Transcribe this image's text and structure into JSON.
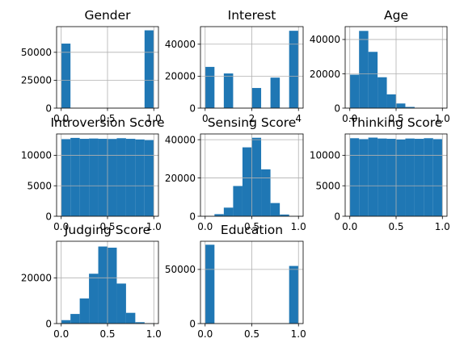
{
  "chart_data": [
    {
      "type": "bar",
      "title": "Gender",
      "xlim": [
        -0.05,
        1.05
      ],
      "ylim": [
        0,
        73000
      ],
      "xticks": [
        0.0,
        0.5,
        1.0
      ],
      "xtick_labels": [
        "0.0",
        "0.5",
        "1.0"
      ],
      "yticks": [
        0,
        25000,
        50000
      ],
      "ytick_labels": [
        "0",
        "25000",
        "50000"
      ],
      "bin_edges": [
        0.0,
        0.1,
        0.2,
        0.3,
        0.4,
        0.5,
        0.6,
        0.7,
        0.8,
        0.9,
        1.0
      ],
      "values": [
        57800,
        0,
        0,
        0,
        0,
        0,
        0,
        0,
        0,
        69700
      ],
      "grid": true
    },
    {
      "type": "bar",
      "title": "Interest",
      "xlim": [
        -0.2,
        4.2
      ],
      "ylim": [
        0,
        51000
      ],
      "xticks": [
        0,
        2,
        4
      ],
      "xtick_labels": [
        "0",
        "2",
        "4"
      ],
      "yticks": [
        0,
        20000,
        40000
      ],
      "ytick_labels": [
        "0",
        "20000",
        "40000"
      ],
      "bin_edges": [
        0.0,
        0.4,
        0.8,
        1.2,
        1.6,
        2.0,
        2.4,
        2.8,
        3.2,
        3.6,
        4.0
      ],
      "values": [
        25800,
        0,
        21700,
        0,
        0,
        12600,
        0,
        19100,
        0,
        48400
      ],
      "grid": true
    },
    {
      "type": "bar",
      "title": "Age",
      "xlim": [
        -0.05,
        1.05
      ],
      "ylim": [
        0,
        47500
      ],
      "xticks": [
        0.0,
        0.5,
        1.0
      ],
      "xtick_labels": [
        "0.0",
        "0.5",
        "1.0"
      ],
      "yticks": [
        0,
        20000,
        40000
      ],
      "ytick_labels": [
        "0",
        "20000",
        "40000"
      ],
      "bin_edges": [
        0.0,
        0.1,
        0.2,
        0.3,
        0.4,
        0.5,
        0.6,
        0.7,
        0.8,
        0.9,
        1.0
      ],
      "values": [
        19500,
        45000,
        32800,
        18000,
        8000,
        2700,
        700,
        150,
        50,
        20
      ],
      "grid": true
    },
    {
      "type": "bar",
      "title": "Introversion Score",
      "xlim": [
        -0.05,
        1.05
      ],
      "ylim": [
        0,
        13500
      ],
      "xticks": [
        0.0,
        0.5,
        1.0
      ],
      "xtick_labels": [
        "0.0",
        "0.5",
        "1.0"
      ],
      "yticks": [
        0,
        5000,
        10000
      ],
      "ytick_labels": [
        "0",
        "5000",
        "10000"
      ],
      "bin_edges": [
        0.0,
        0.1,
        0.2,
        0.3,
        0.4,
        0.5,
        0.6,
        0.7,
        0.8,
        0.9,
        1.0
      ],
      "values": [
        12650,
        12850,
        12700,
        12750,
        12700,
        12680,
        12800,
        12700,
        12600,
        12500
      ],
      "grid": true
    },
    {
      "type": "bar",
      "title": "Sensing Score",
      "xlim": [
        -0.05,
        1.05
      ],
      "ylim": [
        0,
        43000
      ],
      "xticks": [
        0.0,
        0.5,
        1.0
      ],
      "xtick_labels": [
        "0.0",
        "0.5",
        "1.0"
      ],
      "yticks": [
        0,
        20000,
        40000
      ],
      "ytick_labels": [
        "0",
        "20000",
        "40000"
      ],
      "bin_edges": [
        0.0,
        0.1,
        0.2,
        0.3,
        0.4,
        0.5,
        0.6,
        0.7,
        0.8,
        0.9,
        1.0
      ],
      "values": [
        100,
        1100,
        4500,
        15800,
        36000,
        41000,
        24500,
        6900,
        900,
        100
      ],
      "grid": true
    },
    {
      "type": "bar",
      "title": "Thinking Score",
      "xlim": [
        -0.05,
        1.05
      ],
      "ylim": [
        0,
        13500
      ],
      "xticks": [
        0.0,
        0.5,
        1.0
      ],
      "xtick_labels": [
        "0.0",
        "0.5",
        "1.0"
      ],
      "yticks": [
        0,
        5000,
        10000
      ],
      "ytick_labels": [
        "0",
        "5000",
        "10000"
      ],
      "bin_edges": [
        0.0,
        0.1,
        0.2,
        0.3,
        0.4,
        0.5,
        0.6,
        0.7,
        0.8,
        0.9,
        1.0
      ],
      "values": [
        12800,
        12650,
        12900,
        12750,
        12700,
        12600,
        12750,
        12700,
        12800,
        12650
      ],
      "grid": true
    },
    {
      "type": "bar",
      "title": "Judging Score",
      "xlim": [
        -0.05,
        1.05
      ],
      "ylim": [
        0,
        36000
      ],
      "xticks": [
        0.0,
        0.5,
        1.0
      ],
      "xtick_labels": [
        "0.0",
        "0.5",
        "1.0"
      ],
      "yticks": [
        0,
        20000
      ],
      "ytick_labels": [
        "0",
        "20000"
      ],
      "bin_edges": [
        0.0,
        0.1,
        0.2,
        0.3,
        0.4,
        0.5,
        0.6,
        0.7,
        0.8,
        0.9,
        1.0
      ],
      "values": [
        1500,
        4200,
        11000,
        21800,
        33700,
        33200,
        17500,
        4700,
        600,
        100
      ],
      "grid": true
    },
    {
      "type": "bar",
      "title": "Education",
      "xlim": [
        -0.05,
        1.05
      ],
      "ylim": [
        0,
        76000
      ],
      "xticks": [
        0.0,
        0.5,
        1.0
      ],
      "xtick_labels": [
        "0.0",
        "0.5",
        "1.0"
      ],
      "yticks": [
        0,
        50000
      ],
      "ytick_labels": [
        "0",
        "50000"
      ],
      "bin_edges": [
        0.0,
        0.1,
        0.2,
        0.3,
        0.4,
        0.5,
        0.6,
        0.7,
        0.8,
        0.9,
        1.0
      ],
      "values": [
        72800,
        0,
        0,
        0,
        0,
        0,
        0,
        0,
        0,
        53200
      ],
      "grid": true
    }
  ],
  "colors": {
    "bar": "#1f77b4",
    "grid": "#b0b0b0",
    "axes": "#000000"
  }
}
